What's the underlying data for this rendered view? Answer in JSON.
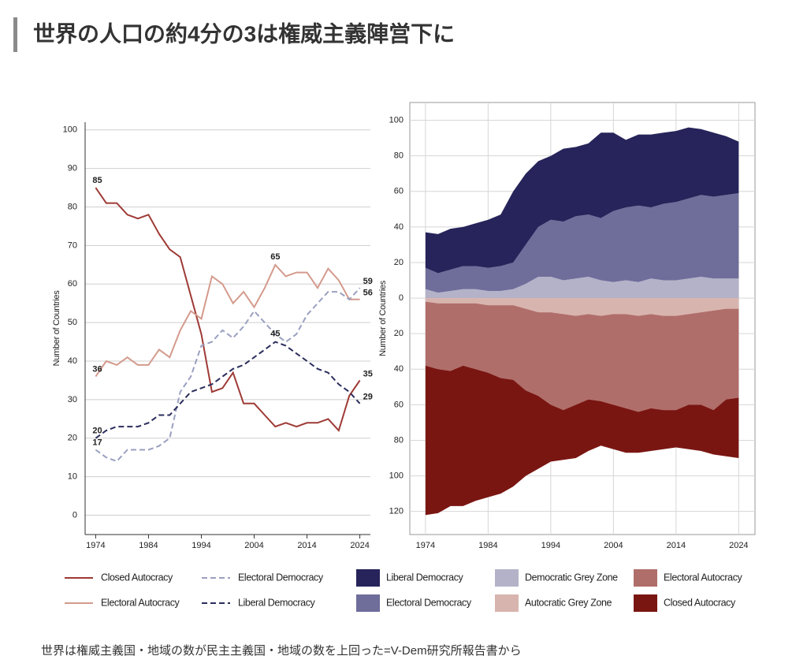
{
  "header": {
    "title": "世界の人口の約4分の3は権威主義陣営下に"
  },
  "caption": "世界は権威主義国・地域の数が民主主義国・地域の数を上回った=V-Dem研究所報告書から",
  "chart_data": [
    {
      "type": "line",
      "ylabel": "Number of Countries",
      "x": [
        1974,
        1976,
        1978,
        1980,
        1982,
        1984,
        1986,
        1988,
        1990,
        1992,
        1994,
        1996,
        1998,
        2000,
        2002,
        2004,
        2006,
        2008,
        2010,
        2012,
        2014,
        2016,
        2018,
        2020,
        2022,
        2024
      ],
      "xlim": [
        1972,
        2026
      ],
      "xticks": [
        1974,
        1984,
        1994,
        2004,
        2014,
        2024
      ],
      "ylim": [
        -5,
        102
      ],
      "yticks": [
        0,
        10,
        20,
        30,
        40,
        50,
        60,
        70,
        80,
        90,
        100
      ],
      "grid": true,
      "series": [
        {
          "name": "Closed Autocracy",
          "color": "#9e3a35",
          "dash": false,
          "values": [
            85,
            81,
            81,
            78,
            77,
            78,
            73,
            69,
            67,
            57,
            47,
            32,
            33,
            37,
            29,
            29,
            26,
            23,
            24,
            23,
            24,
            24,
            25,
            22,
            31,
            35
          ]
        },
        {
          "name": "Electoral Autocracy",
          "color": "#d49a8c",
          "dash": false,
          "values": [
            36,
            40,
            39,
            41,
            39,
            39,
            43,
            41,
            48,
            53,
            51,
            62,
            60,
            55,
            58,
            54,
            59,
            65,
            62,
            63,
            63,
            59,
            64,
            61,
            56,
            56
          ]
        },
        {
          "name": "Electoral Democracy",
          "color": "#9aa0c0",
          "dash": true,
          "values": [
            17,
            15,
            14,
            17,
            17,
            17,
            18,
            20,
            32,
            36,
            44,
            45,
            48,
            46,
            49,
            53,
            50,
            47,
            45,
            47,
            52,
            55,
            58,
            58,
            56,
            59
          ]
        },
        {
          "name": "Liberal Democracy",
          "color": "#2a2d5c",
          "dash": true,
          "values": [
            20,
            22,
            23,
            23,
            23,
            24,
            26,
            26,
            29,
            32,
            33,
            34,
            36,
            38,
            39,
            41,
            43,
            45,
            44,
            42,
            40,
            38,
            37,
            34,
            32,
            29
          ]
        }
      ]
    },
    {
      "type": "area",
      "stacked": true,
      "ylabel": "Number of Countries",
      "x": [
        1974,
        1976,
        1978,
        1980,
        1982,
        1984,
        1986,
        1988,
        1990,
        1992,
        1994,
        1996,
        1998,
        2000,
        2002,
        2004,
        2006,
        2008,
        2010,
        2012,
        2014,
        2016,
        2018,
        2020,
        2022,
        2024
      ],
      "xlim": [
        1971.5,
        2026.6
      ],
      "xticks": [
        1974,
        1984,
        1994,
        2004,
        2014,
        2024
      ],
      "ylim": [
        -133,
        110
      ],
      "yticks": [
        100,
        80,
        60,
        40,
        20,
        0,
        {
          "value": -20,
          "label": "20"
        },
        {
          "value": -40,
          "label": "40"
        },
        {
          "value": -60,
          "label": "60"
        },
        {
          "value": -80,
          "label": "80"
        },
        {
          "value": -100,
          "label": "100"
        },
        {
          "value": -120,
          "label": "120"
        }
      ],
      "grid": true,
      "series": [
        {
          "name": "Liberal Democracy",
          "color": "#26245a",
          "values": [
            20,
            22,
            23,
            22,
            24,
            27,
            29,
            40,
            40,
            37,
            36,
            41,
            39,
            40,
            48,
            44,
            38,
            40,
            41,
            40,
            40,
            40,
            37,
            36,
            33,
            29
          ]
        },
        {
          "name": "Electoral Democracy",
          "color": "#6f6d9a",
          "values": [
            12,
            11,
            12,
            13,
            13,
            13,
            14,
            15,
            22,
            28,
            32,
            33,
            35,
            35,
            35,
            40,
            41,
            43,
            40,
            43,
            44,
            45,
            46,
            46,
            47,
            48
          ]
        },
        {
          "name": "Democratic Grey Zone",
          "color": "#b4b2c8",
          "values": [
            5,
            3,
            4,
            5,
            5,
            4,
            4,
            5,
            8,
            12,
            12,
            10,
            11,
            12,
            10,
            9,
            10,
            9,
            11,
            10,
            10,
            11,
            12,
            11,
            11,
            11
          ]
        },
        {
          "name": "Autocratic Grey Zone",
          "color": "#d8b4ae",
          "values": [
            -2,
            -3,
            -3,
            -3,
            -3,
            -4,
            -4,
            -4,
            -6,
            -8,
            -8,
            -9,
            -10,
            -9,
            -10,
            -9,
            -9,
            -10,
            -9,
            -10,
            -10,
            -9,
            -8,
            -7,
            -6,
            -6
          ]
        },
        {
          "name": "Electoral Autocracy",
          "color": "#b06e6a",
          "values": [
            -36,
            -37,
            -38,
            -35,
            -37,
            -38,
            -41,
            -42,
            -46,
            -47,
            -52,
            -54,
            -50,
            -48,
            -48,
            -51,
            -53,
            -54,
            -53,
            -53,
            -53,
            -51,
            -52,
            -56,
            -51,
            -50
          ]
        },
        {
          "name": "Closed Autocracy",
          "color": "#7a1612",
          "values": [
            -84,
            -81,
            -76,
            -79,
            -74,
            -70,
            -65,
            -60,
            -48,
            -41,
            -32,
            -28,
            -30,
            -29,
            -25,
            -25,
            -25,
            -23,
            -24,
            -22,
            -21,
            -25,
            -26,
            -25,
            -32,
            -34
          ]
        }
      ]
    }
  ]
}
